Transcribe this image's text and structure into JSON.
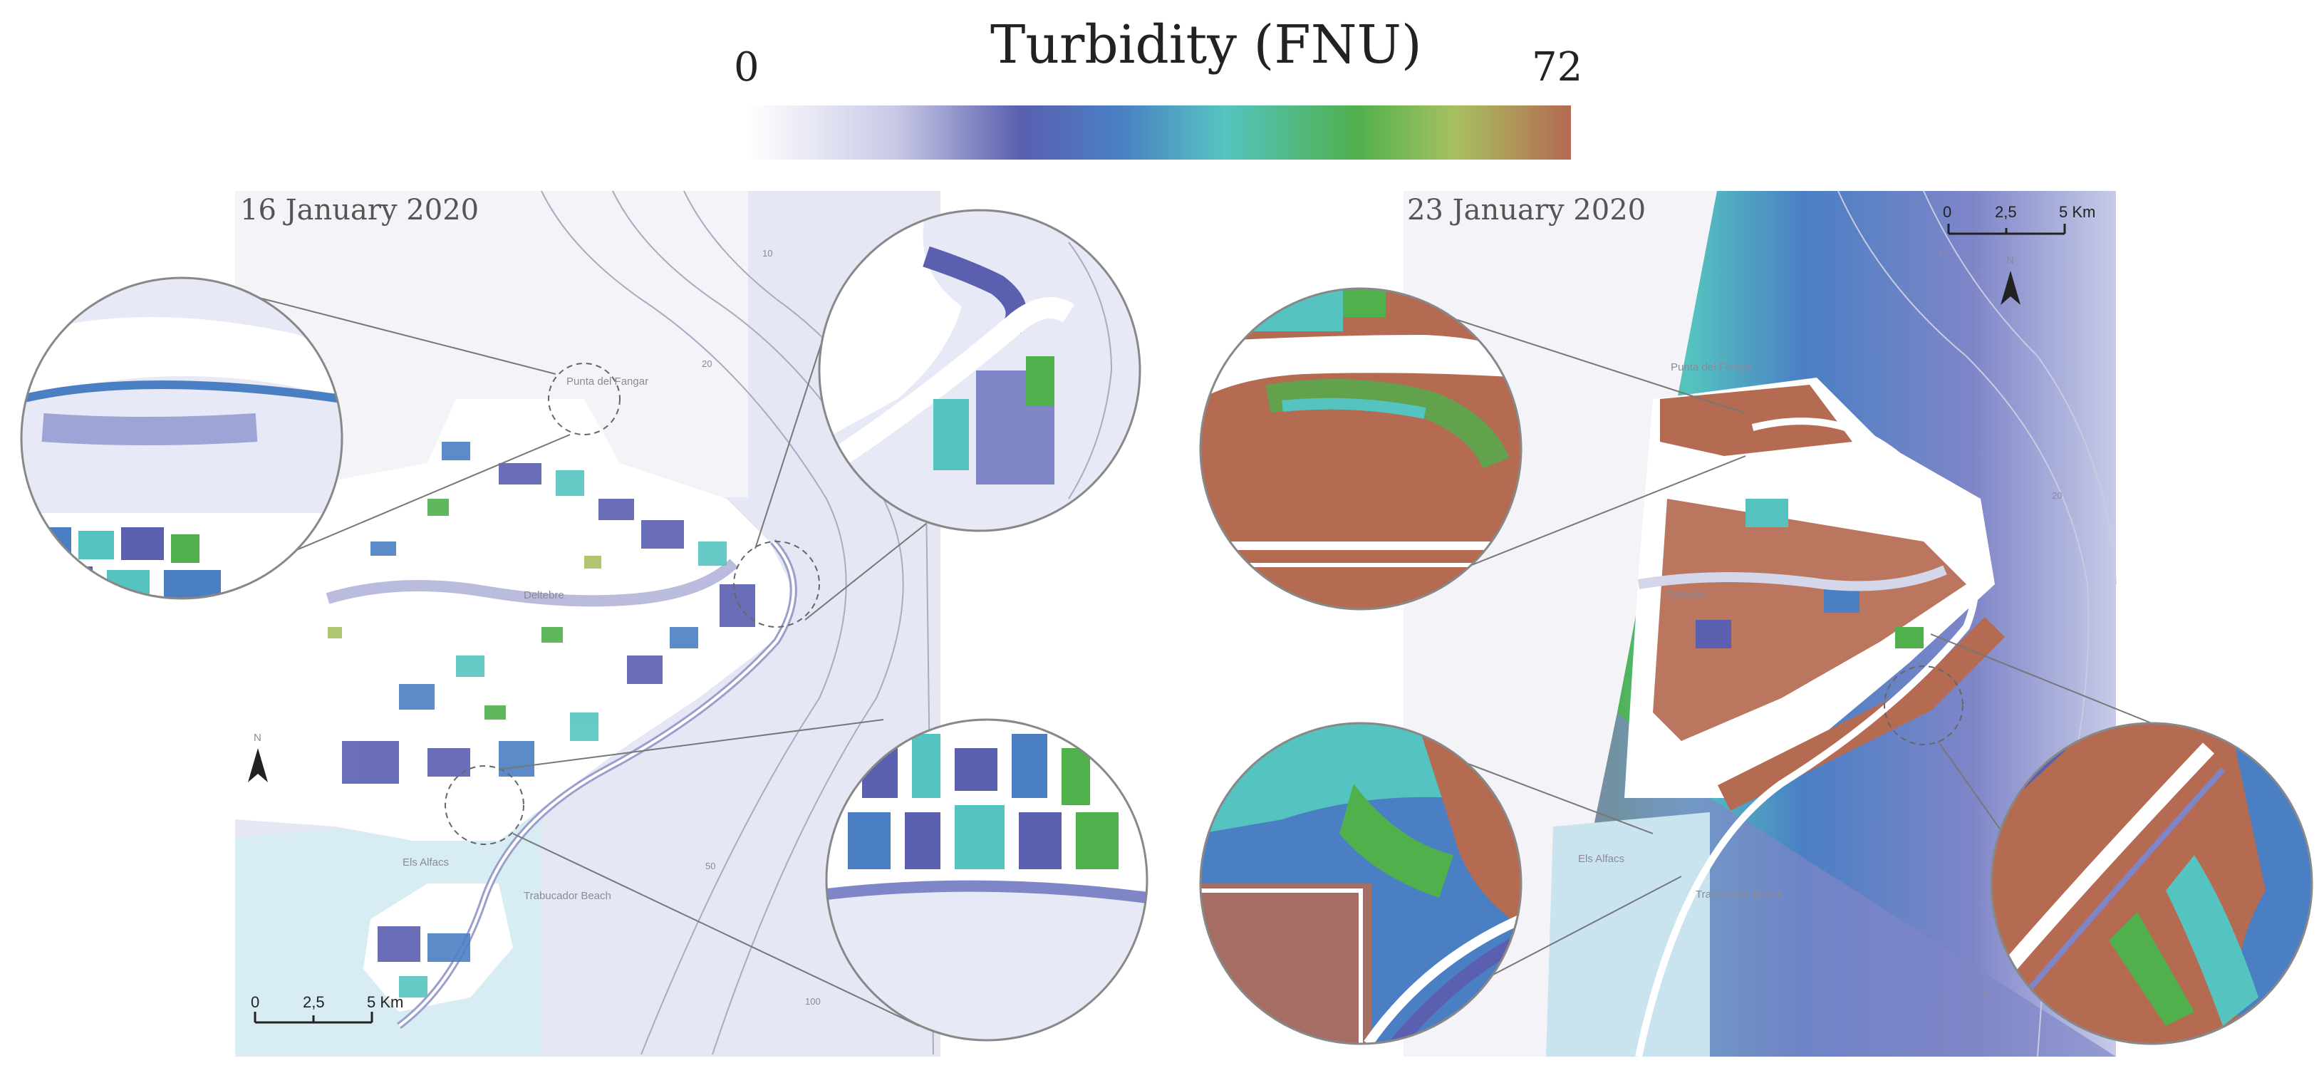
{
  "legend": {
    "title": "Turbidity (FNU)",
    "min_label": "0",
    "max_label": "72",
    "min_value": 0,
    "max_value": 72,
    "colormap": [
      "#ffffff",
      "#c8c9e6",
      "#5a5fb0",
      "#4a7fc4",
      "#55c4c0",
      "#4fb04c",
      "#a8c060",
      "#b56a52"
    ]
  },
  "panels": [
    {
      "date": "16 January 2020",
      "places": [
        "Punta del Fangar",
        "Deltebre",
        "Els Alfacs",
        "Trabucador Beach"
      ],
      "scale_labels": [
        "0",
        "2,5",
        "5 Km"
      ],
      "north_label": "N"
    },
    {
      "date": "23 January 2020",
      "places": [
        "Punta del Fangar",
        "Deltebre",
        "Els Alfacs",
        "Trabucador Beach"
      ],
      "scale_labels": [
        "0",
        "2,5",
        "5 Km"
      ],
      "north_label": "N"
    }
  ],
  "contour_labels": [
    "10",
    "20",
    "50",
    "100"
  ],
  "colors": {
    "sea_light": "#e3e5f4",
    "lagoon": "#d7ecf2",
    "land": "#ffffff",
    "low": "#5a5fb0",
    "mid": "#55c4c0",
    "high": "#b56a52"
  }
}
